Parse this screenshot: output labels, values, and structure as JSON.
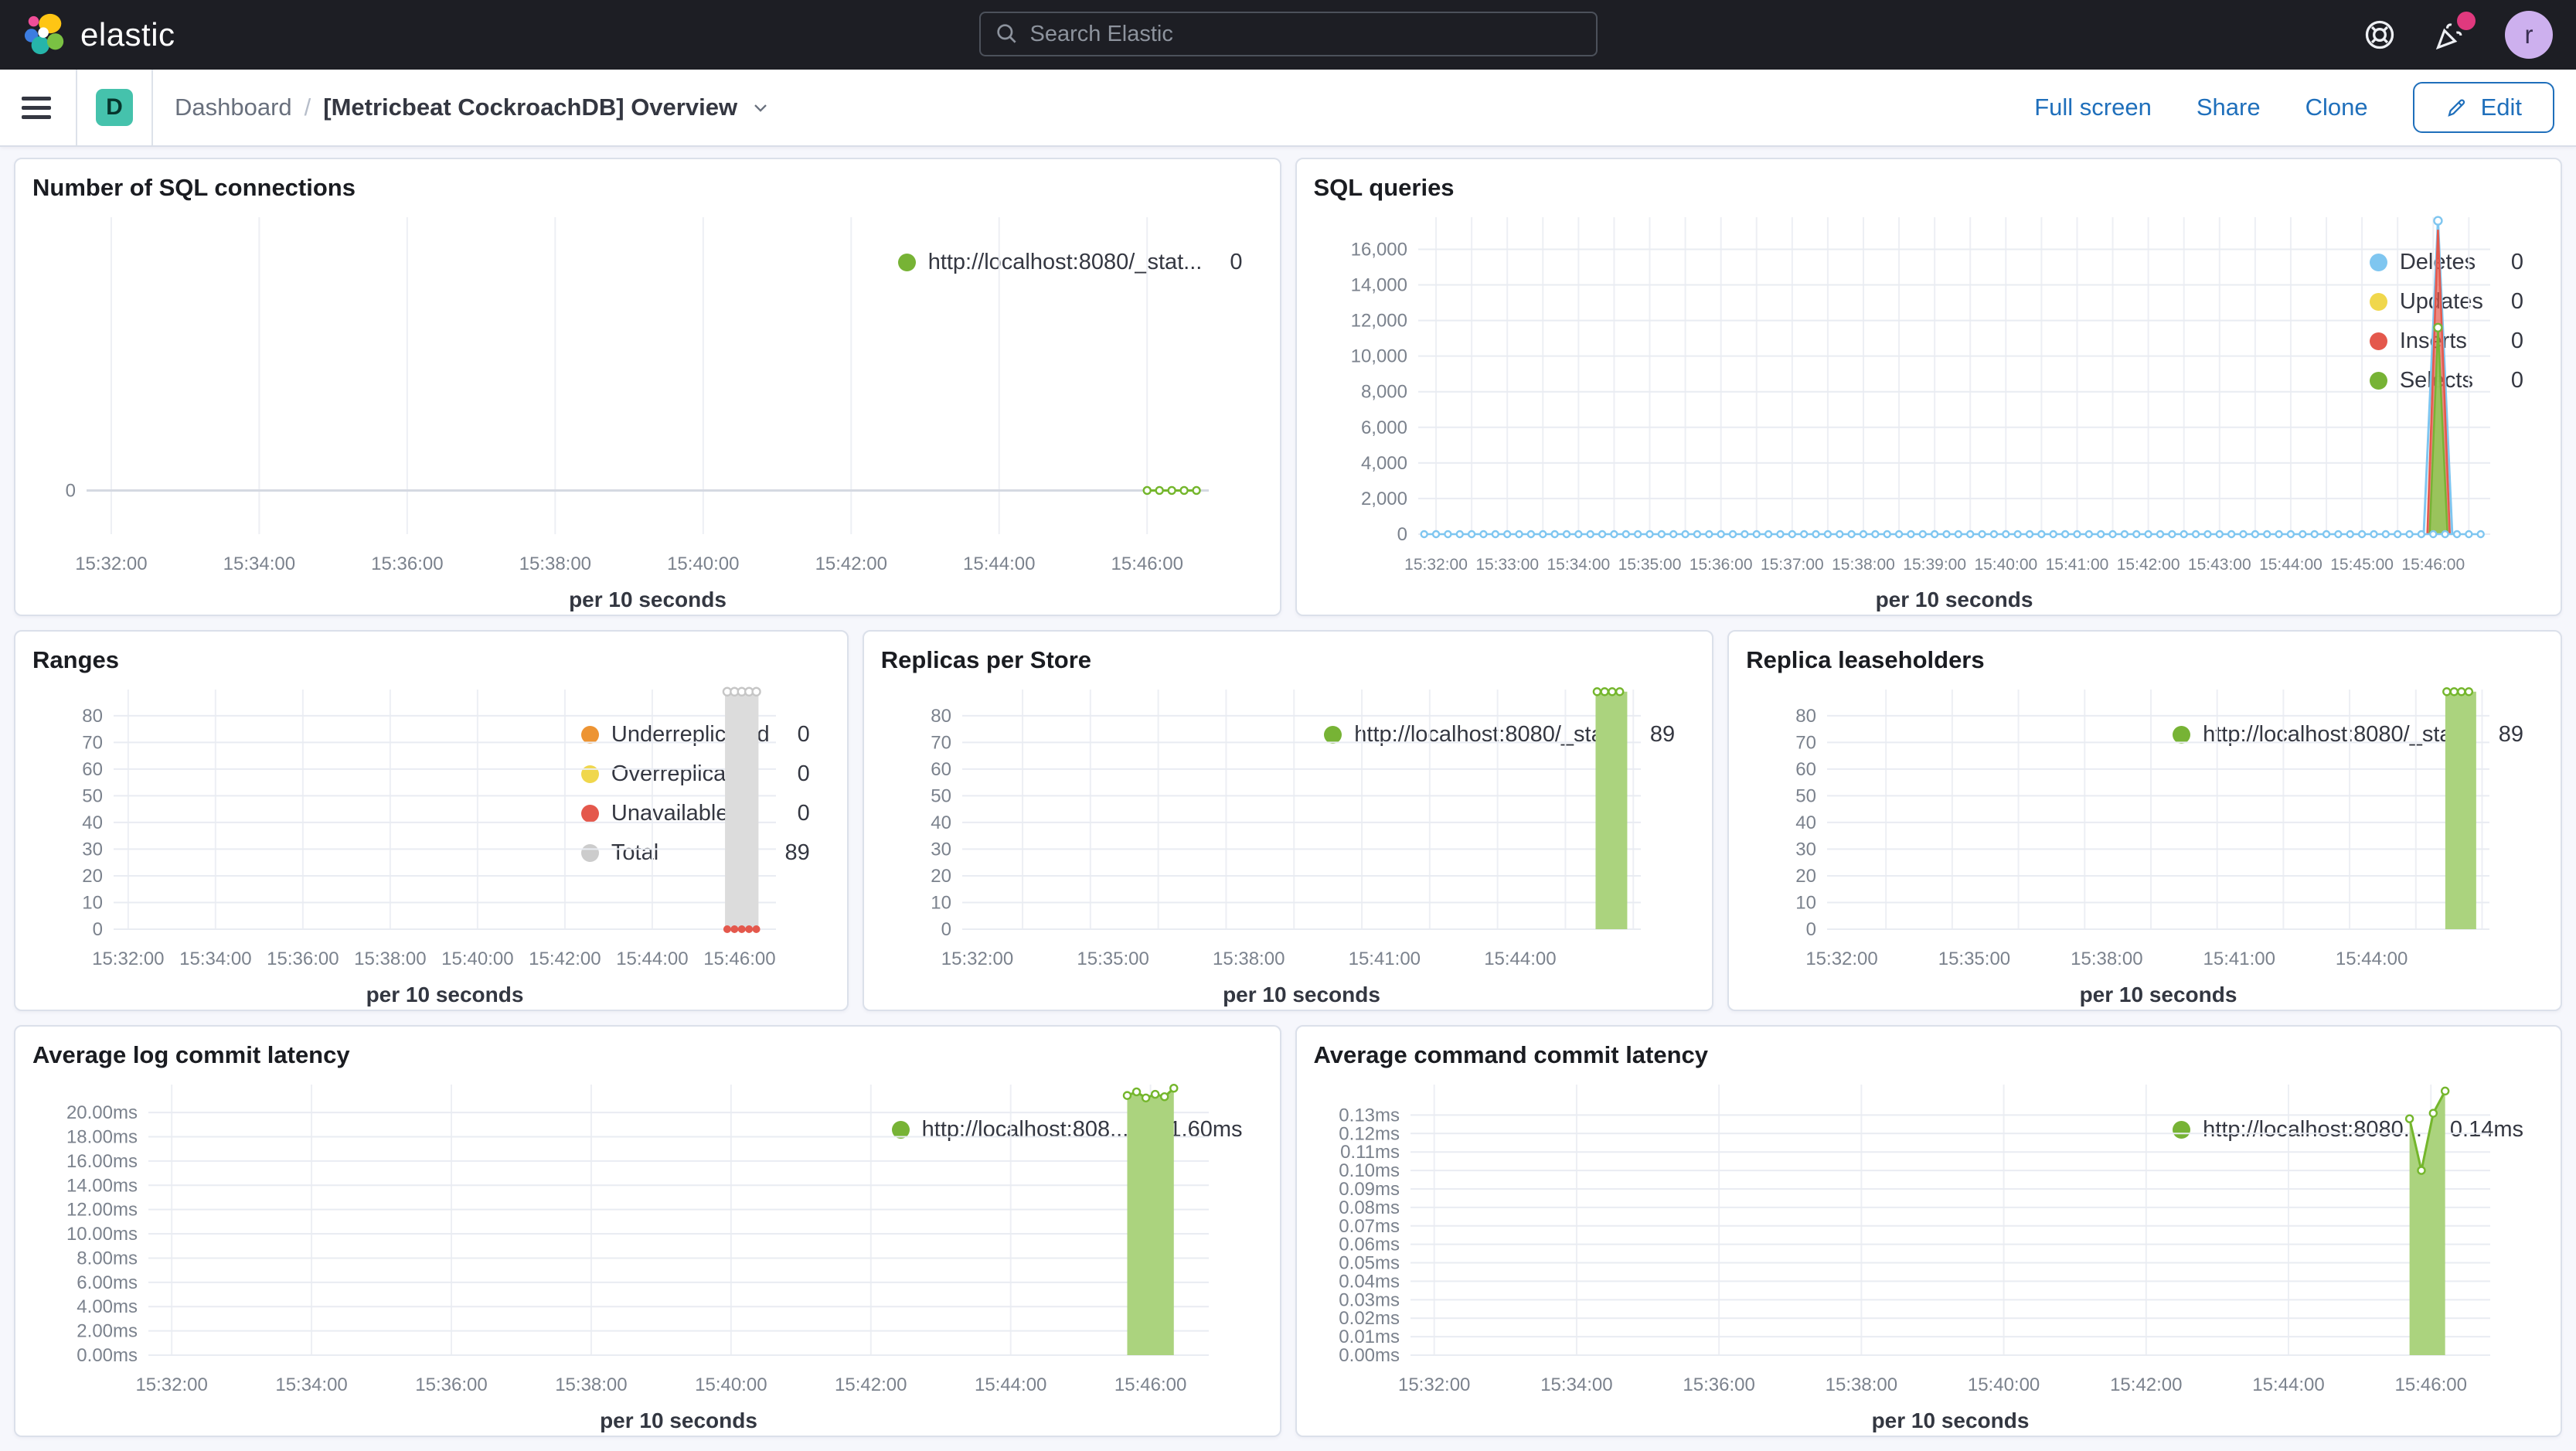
{
  "header": {
    "brand": "elastic",
    "search_placeholder": "Search Elastic",
    "avatar_initial": "r",
    "icons": [
      "search-icon",
      "help-icon",
      "news-icon"
    ]
  },
  "navbar": {
    "badge": "D",
    "breadcrumb": {
      "root": "Dashboard",
      "separator": "/",
      "current": "[Metricbeat CockroachDB] Overview"
    },
    "actions": [
      "Full screen",
      "Share",
      "Clone"
    ],
    "edit_label": "Edit"
  },
  "colors": {
    "header_bg": "#1d1e24",
    "accent_blue": "#1f6fbb",
    "badge_teal": "#45c2ac",
    "notification_pink": "#e0397e",
    "avatar_purple": "#cdb0ee",
    "series_green": "#74b62c",
    "series_blue": "#7fc6f0",
    "series_yellow": "#f0d74c",
    "series_red": "#e4584c",
    "series_orange": "#ed9433",
    "series_gray": "#cccccc"
  },
  "chart_data": [
    {
      "title": "Number of SQL connections",
      "type": "line",
      "xlabel": "per 10 seconds",
      "x_domain": [
        "15:31:40",
        "15:46:50"
      ],
      "x_ticks": [
        "15:32:00",
        "15:34:00",
        "15:36:00",
        "15:38:00",
        "15:40:00",
        "15:42:00",
        "15:44:00",
        "15:46:00"
      ],
      "y_domain": [
        -0.16,
        1
      ],
      "y_ticks": [
        [
          0,
          "0"
        ]
      ],
      "baseline": 0,
      "margin_left": 70,
      "legend": [
        {
          "label": "http://localhost:8080/_stat...",
          "value": "0",
          "color": "#77b335"
        }
      ],
      "series": [
        {
          "name": "http://localhost:8080/_stat...",
          "style": "line",
          "color": "#74b62c",
          "width": 3,
          "flat": {
            "from": "15:46:00",
            "to": "15:46:40",
            "step": 10,
            "value": 0
          },
          "markers": true,
          "marker_r": 4.5
        }
      ]
    },
    {
      "title": "SQL queries",
      "type": "line",
      "xlabel": "per 10 seconds",
      "x_domain": [
        "15:31:45",
        "15:46:48"
      ],
      "x_ticks": [
        "15:32:00",
        "15:33:00",
        "15:34:00",
        "15:35:00",
        "15:36:00",
        "15:37:00",
        "15:38:00",
        "15:39:00",
        "15:40:00",
        "15:41:00",
        "15:42:00",
        "15:43:00",
        "15:44:00",
        "15:45:00",
        "15:46:00"
      ],
      "x_grid_step": 30,
      "tick_font": 21,
      "y_domain": [
        0,
        17800
      ],
      "y_ticks": [
        [
          0,
          "0"
        ],
        [
          2000,
          "2,000"
        ],
        [
          4000,
          "4,000"
        ],
        [
          6000,
          "6,000"
        ],
        [
          8000,
          "8,000"
        ],
        [
          10000,
          "10,000"
        ],
        [
          12000,
          "12,000"
        ],
        [
          14000,
          "14,000"
        ],
        [
          16000,
          "16,000"
        ]
      ],
      "margin_left": 135,
      "legend": [
        {
          "label": "Deletes",
          "value": "0",
          "color": "#7fc6f0"
        },
        {
          "label": "Updates",
          "value": "0",
          "color": "#f0d74c"
        },
        {
          "label": "Inserts",
          "value": "0",
          "color": "#e4584c"
        },
        {
          "label": "Selects",
          "value": "0",
          "color": "#77b335"
        }
      ],
      "series": [
        {
          "name": "Deletes-spike",
          "style": "line",
          "color": "#7fc6f0",
          "width": 3,
          "points": [
            [
              "15:45:52",
              0
            ],
            [
              "15:46:04",
              17600
            ],
            [
              "15:46:16",
              0
            ]
          ]
        },
        {
          "name": "Inserts-spike",
          "style": "area",
          "color": "#e4584c",
          "fill": "rgba(228,88,76,0.7)",
          "points": [
            [
              "15:45:55",
              0
            ],
            [
              "15:46:04",
              17100
            ],
            [
              "15:46:14",
              0
            ]
          ]
        },
        {
          "name": "Selects-spike",
          "style": "area",
          "color": "#77b335",
          "fill": "rgba(150,198,90,0.95)",
          "points": [
            [
              "15:45:57",
              0
            ],
            [
              "15:46:04",
              11600
            ],
            [
              "15:46:12",
              0
            ]
          ]
        },
        {
          "name": "Deletes-baseline",
          "style": "line",
          "color": "#7fc6f0",
          "width": 2.5,
          "flat": {
            "from": "15:31:50",
            "to": "15:46:45",
            "step": 10,
            "value": 0
          },
          "markers": true,
          "marker_r": 4
        },
        {
          "name": "Deletes-peak",
          "style": "dots",
          "color": "#7fc6f0",
          "points": [
            [
              "15:46:04",
              17600
            ]
          ],
          "markers": true,
          "marker_r": 5
        },
        {
          "name": "Selects-peak",
          "style": "dots",
          "color": "#77b335",
          "points": [
            [
              "15:46:04",
              11600
            ]
          ],
          "markers": true,
          "marker_r": 5
        }
      ]
    },
    {
      "title": "Ranges",
      "type": "bar",
      "xlabel": "per 10 seconds",
      "x_domain": [
        "15:31:40",
        "15:46:50"
      ],
      "x_ticks": [
        "15:32:00",
        "15:34:00",
        "15:36:00",
        "15:38:00",
        "15:40:00",
        "15:42:00",
        "15:44:00",
        "15:46:00"
      ],
      "y_domain": [
        0,
        89.8
      ],
      "y_ticks": [
        [
          0,
          "0"
        ],
        [
          10,
          "10"
        ],
        [
          20,
          "20"
        ],
        [
          30,
          "30"
        ],
        [
          40,
          "40"
        ],
        [
          50,
          "50"
        ],
        [
          60,
          "60"
        ],
        [
          70,
          "70"
        ],
        [
          80,
          "80"
        ]
      ],
      "margin_left": 105,
      "legend": [
        {
          "label": "Underreplicated",
          "value": "0",
          "color": "#ed9433"
        },
        {
          "label": "Overreplicated",
          "value": "0",
          "color": "#f0d74c"
        },
        {
          "label": "Unavailable",
          "value": "0",
          "color": "#e4584c"
        },
        {
          "label": "Total",
          "value": "89",
          "color": "#cccccc"
        }
      ],
      "series": [
        {
          "name": "Total",
          "style": "bar",
          "from": "15:45:40",
          "to": "15:46:26",
          "value": 89,
          "color": "#dcdcdc"
        },
        {
          "name": "Total-points",
          "style": "dots",
          "color": "#c6c6c6",
          "flat": {
            "from": "15:45:43",
            "to": "15:46:23",
            "step": 10,
            "value": 89
          },
          "markers": true,
          "marker_r": 5
        },
        {
          "name": "Unavailable-points",
          "style": "dots",
          "color": "#e4584c",
          "marker_solid": true,
          "flat": {
            "from": "15:45:43",
            "to": "15:46:23",
            "step": 10,
            "value": 0
          },
          "markers": true,
          "marker_r": 5
        }
      ]
    },
    {
      "title": "Replicas per Store",
      "type": "bar",
      "xlabel": "per 10 seconds",
      "x_domain": [
        "15:31:40",
        "15:46:40"
      ],
      "x_ticks": [
        "15:32:00",
        "15:35:00",
        "15:38:00",
        "15:41:00",
        "15:44:00"
      ],
      "x_grid_step": 90,
      "y_domain": [
        0,
        89.8
      ],
      "y_ticks": [
        [
          0,
          "0"
        ],
        [
          10,
          "10"
        ],
        [
          20,
          "20"
        ],
        [
          30,
          "30"
        ],
        [
          40,
          "40"
        ],
        [
          50,
          "50"
        ],
        [
          60,
          "60"
        ],
        [
          70,
          "70"
        ],
        [
          80,
          "80"
        ]
      ],
      "margin_left": 105,
      "legend": [
        {
          "label": "http://localhost:8080/_sta...",
          "value": "89",
          "color": "#77b335"
        }
      ],
      "series": [
        {
          "name": "replicas",
          "style": "bar",
          "from": "15:45:40",
          "to": "15:46:22",
          "value": 89,
          "color": "#abd37e"
        },
        {
          "name": "replicas-points",
          "style": "dots",
          "color": "#74b62c",
          "flat": {
            "from": "15:45:42",
            "to": "15:46:20",
            "step": 10,
            "value": 89
          },
          "markers": true,
          "marker_r": 4.5
        }
      ]
    },
    {
      "title": "Replica leaseholders",
      "type": "bar",
      "xlabel": "per 10 seconds",
      "x_domain": [
        "15:31:40",
        "15:46:40"
      ],
      "x_ticks": [
        "15:32:00",
        "15:35:00",
        "15:38:00",
        "15:41:00",
        "15:44:00"
      ],
      "x_grid_step": 90,
      "y_domain": [
        0,
        89.8
      ],
      "y_ticks": [
        [
          0,
          "0"
        ],
        [
          10,
          "10"
        ],
        [
          20,
          "20"
        ],
        [
          30,
          "30"
        ],
        [
          40,
          "40"
        ],
        [
          50,
          "50"
        ],
        [
          60,
          "60"
        ],
        [
          70,
          "70"
        ],
        [
          80,
          "80"
        ]
      ],
      "margin_left": 105,
      "legend": [
        {
          "label": "http://localhost:8080/_sta...",
          "value": "89",
          "color": "#77b335"
        }
      ],
      "series": [
        {
          "name": "leaseholders",
          "style": "bar",
          "from": "15:45:40",
          "to": "15:46:22",
          "value": 89,
          "color": "#abd37e"
        },
        {
          "name": "leaseholders-points",
          "style": "dots",
          "color": "#74b62c",
          "flat": {
            "from": "15:45:42",
            "to": "15:46:20",
            "step": 10,
            "value": 89
          },
          "markers": true,
          "marker_r": 4.5
        }
      ]
    },
    {
      "title": "Average log commit latency",
      "type": "area",
      "xlabel": "per 10 seconds",
      "x_domain": [
        "15:31:40",
        "15:46:50"
      ],
      "x_ticks": [
        "15:32:00",
        "15:34:00",
        "15:36:00",
        "15:38:00",
        "15:40:00",
        "15:42:00",
        "15:44:00",
        "15:46:00"
      ],
      "y_domain": [
        0,
        22.3
      ],
      "y_ticks": [
        [
          0,
          "0.00ms"
        ],
        [
          2,
          "2.00ms"
        ],
        [
          4,
          "4.00ms"
        ],
        [
          6,
          "6.00ms"
        ],
        [
          8,
          "8.00ms"
        ],
        [
          10,
          "10.00ms"
        ],
        [
          12,
          "12.00ms"
        ],
        [
          14,
          "14.00ms"
        ],
        [
          16,
          "16.00ms"
        ],
        [
          18,
          "18.00ms"
        ],
        [
          20,
          "20.00ms"
        ]
      ],
      "margin_left": 150,
      "legend": [
        {
          "label": "http://localhost:808...",
          "value": "21.60ms",
          "color": "#77b335"
        }
      ],
      "series": [
        {
          "name": "log-commit-latency",
          "style": "area",
          "color": "#74b62c",
          "fill": "#abd37e",
          "width": 3,
          "points": [
            [
              "15:45:40",
              21.4
            ],
            [
              "15:45:48",
              21.7
            ],
            [
              "15:45:56",
              21.2
            ],
            [
              "15:46:04",
              21.5
            ],
            [
              "15:46:12",
              21.3
            ],
            [
              "15:46:20",
              22.0
            ]
          ],
          "markers": true,
          "marker_r": 4.5
        }
      ]
    },
    {
      "title": "Average command commit latency",
      "type": "area",
      "xlabel": "per 10 seconds",
      "x_domain": [
        "15:31:40",
        "15:46:50"
      ],
      "x_ticks": [
        "15:32:00",
        "15:34:00",
        "15:36:00",
        "15:38:00",
        "15:40:00",
        "15:42:00",
        "15:44:00",
        "15:46:00"
      ],
      "y_domain": [
        0,
        0.1465
      ],
      "y_ticks": [
        [
          0,
          "0.00ms"
        ],
        [
          0.01,
          "0.01ms"
        ],
        [
          0.02,
          "0.02ms"
        ],
        [
          0.03,
          "0.03ms"
        ],
        [
          0.04,
          "0.04ms"
        ],
        [
          0.05,
          "0.05ms"
        ],
        [
          0.06,
          "0.06ms"
        ],
        [
          0.07,
          "0.07ms"
        ],
        [
          0.08,
          "0.08ms"
        ],
        [
          0.09,
          "0.09ms"
        ],
        [
          0.1,
          "0.10ms"
        ],
        [
          0.11,
          "0.11ms"
        ],
        [
          0.12,
          "0.12ms"
        ],
        [
          0.13,
          "0.13ms"
        ]
      ],
      "margin_left": 125,
      "legend": [
        {
          "label": "http://localhost:8080...",
          "value": "0.14ms",
          "color": "#77b335"
        }
      ],
      "series": [
        {
          "name": "command-commit-latency",
          "style": "area",
          "color": "#74b62c",
          "fill": "#abd37e",
          "width": 3,
          "points": [
            [
              "15:45:42",
              0.128
            ],
            [
              "15:45:52",
              0.1
            ],
            [
              "15:46:02",
              0.131
            ],
            [
              "15:46:12",
              0.143
            ]
          ],
          "markers": true,
          "marker_r": 4.5
        }
      ]
    }
  ]
}
